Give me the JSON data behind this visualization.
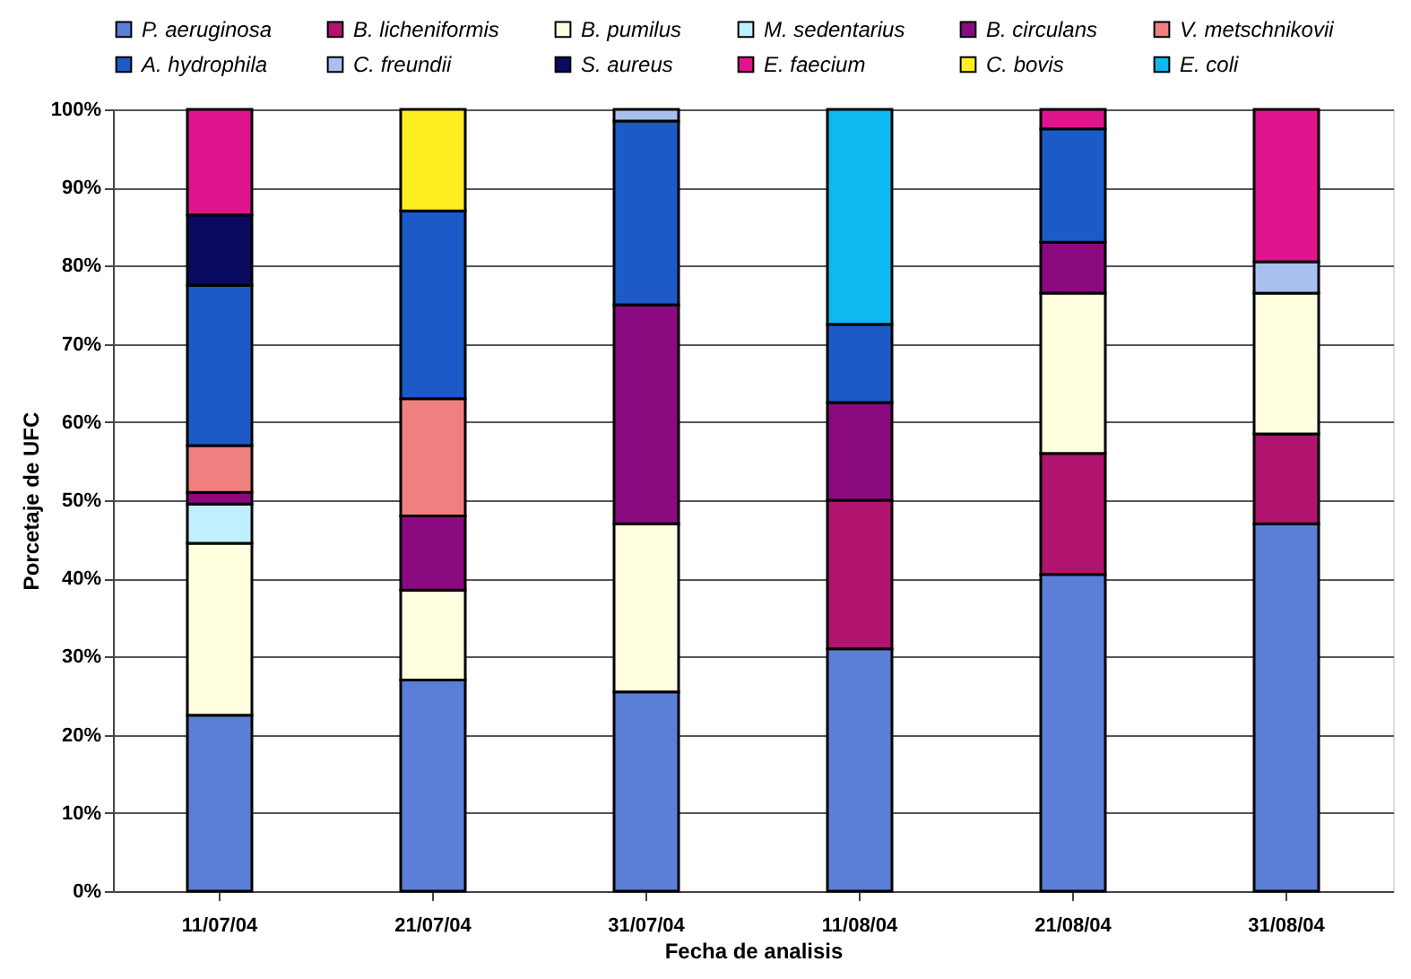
{
  "chart_data": {
    "type": "bar",
    "stacked": true,
    "xlabel": "Fecha de analisis",
    "ylabel": "Porcetaje de UFC",
    "categories": [
      "11/07/04",
      "21/07/04",
      "31/07/04",
      "11/08/04",
      "21/08/04",
      "31/08/04"
    ],
    "series": [
      {
        "name": "P. aeruginosa",
        "color": "#5b7fd6",
        "values": [
          22.5,
          27,
          25.5,
          31,
          40.5,
          47
        ]
      },
      {
        "name": "B. licheniformis",
        "color": "#b0146e",
        "values": [
          null,
          null,
          null,
          19,
          15.5,
          11.5
        ]
      },
      {
        "name": "B. pumilus",
        "color": "#ffffe0",
        "values": [
          22,
          11.5,
          21.5,
          null,
          20.5,
          18
        ]
      },
      {
        "name": "M. sedentarius",
        "color": "#c0f0ff",
        "values": [
          5,
          null,
          null,
          null,
          null,
          null
        ]
      },
      {
        "name": "B. circulans",
        "color": "#8b0a80",
        "values": [
          1.5,
          9.5,
          28,
          12.5,
          6.5,
          null
        ]
      },
      {
        "name": "V. metschnikovii",
        "color": "#f08080",
        "values": [
          6,
          15,
          null,
          null,
          null,
          null
        ]
      },
      {
        "name": "A. hydrophila",
        "color": "#1c5ac8",
        "values": [
          20.5,
          24,
          23.5,
          10,
          14.5,
          null
        ]
      },
      {
        "name": "C. freundii",
        "color": "#a8c0f0",
        "values": [
          null,
          null,
          1.5,
          null,
          null,
          4
        ]
      },
      {
        "name": "S. aureus",
        "color": "#0a0a60",
        "values": [
          9,
          null,
          null,
          null,
          null,
          null
        ]
      },
      {
        "name": "E. faecium",
        "color": "#e0148c",
        "values": [
          13.5,
          null,
          null,
          null,
          2.5,
          19.5
        ]
      },
      {
        "name": "C. bovis",
        "color": "#ffee22",
        "values": [
          null,
          13,
          null,
          null,
          null,
          null
        ]
      },
      {
        "name": "E. coli",
        "color": "#10b8f0",
        "values": [
          null,
          null,
          null,
          27.5,
          null,
          null
        ]
      }
    ],
    "ylim": [
      0,
      100
    ],
    "yticks": [
      {
        "value": 0,
        "label": "0%"
      },
      {
        "value": 10,
        "label": "10%"
      },
      {
        "value": 20,
        "label": "20%"
      },
      {
        "value": 30,
        "label": "30%"
      },
      {
        "value": 40,
        "label": "40%"
      },
      {
        "value": 50,
        "label": "50%"
      },
      {
        "value": 60,
        "label": "60%"
      },
      {
        "value": 70,
        "label": "70%"
      },
      {
        "value": 80,
        "label": "80%"
      },
      {
        "value": 90,
        "label": "90%"
      },
      {
        "value": 100,
        "label": "100%"
      }
    ],
    "grid": "y",
    "legend": "top"
  }
}
